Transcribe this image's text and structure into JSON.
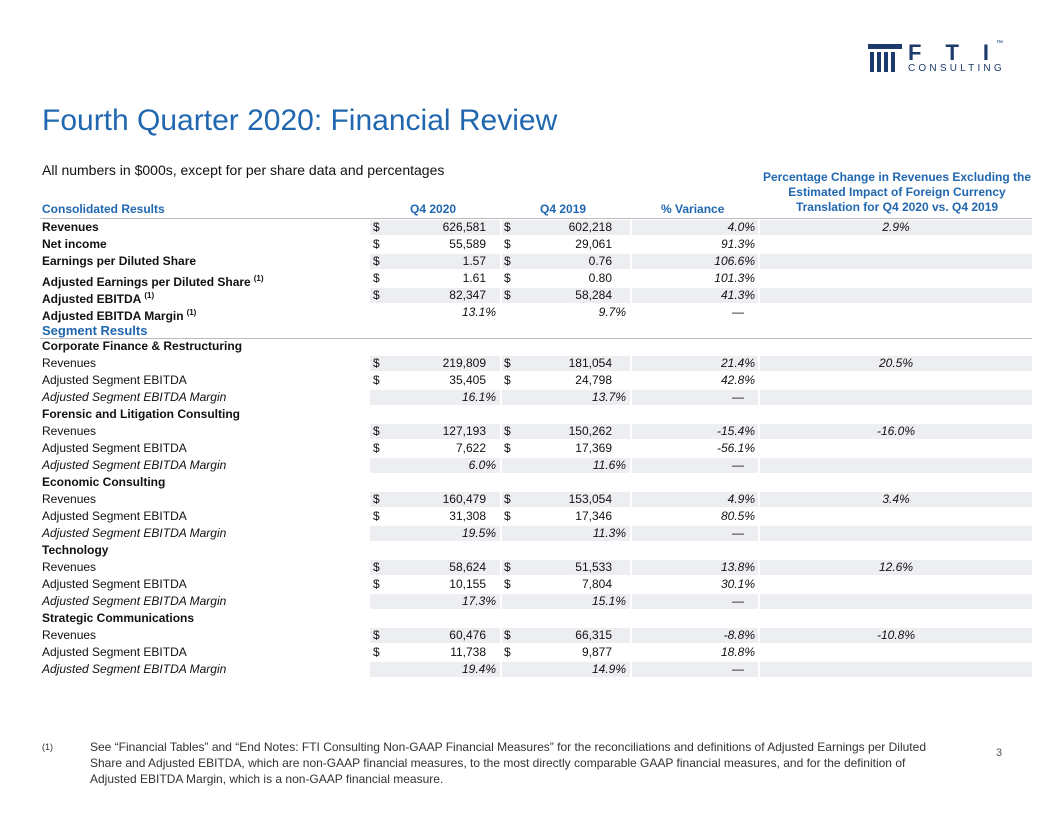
{
  "logo": {
    "mark": "FTI",
    "sub": "CONSULTING",
    "tm": "™"
  },
  "title": "Fourth Quarter 2020: Financial Review",
  "subtitle": "All numbers in $000s, except for per share data and percentages",
  "table": {
    "headers": {
      "label": "Consolidated Results",
      "q4_2020": "Q4 2020",
      "q4_2019": "Q4 2019",
      "variance": "% Variance",
      "fx": "Percentage Change in Revenues Excluding the Estimated Impact of Foreign Currency Translation for Q4 2020 vs. Q4 2019"
    },
    "rows": [
      {
        "label": "Revenues",
        "style": "bold",
        "cur_2020": "$",
        "q4_2020": "626,581",
        "cur_2019": "$",
        "q4_2019": "602,218",
        "variance": "4.0%",
        "fx": "2.9%"
      },
      {
        "label": "Net income",
        "style": "bold",
        "cur_2020": "$",
        "q4_2020": "55,589",
        "cur_2019": "$",
        "q4_2019": "29,061",
        "variance": "91.3%"
      },
      {
        "label": "Earnings per Diluted Share",
        "style": "bold",
        "cur_2020": "$",
        "q4_2020": "1.57",
        "cur_2019": "$",
        "q4_2019": "0.76",
        "variance": "106.6%"
      },
      {
        "label": "Adjusted Earnings per Diluted Share",
        "note": "(1)",
        "style": "bold",
        "cur_2020": "$",
        "q4_2020": "1.61",
        "cur_2019": "$",
        "q4_2019": "0.80",
        "variance": "101.3%"
      },
      {
        "label": "Adjusted EBITDA",
        "note": "(1)",
        "style": "bold",
        "cur_2020": "$",
        "q4_2020": "82,347",
        "cur_2019": "$",
        "q4_2019": "58,284",
        "variance": "41.3%"
      },
      {
        "label": "Adjusted EBITDA Margin",
        "note": "(1)",
        "style": "bold",
        "q4_2020": "13.1%",
        "q4_2019": "9.7%",
        "variance": "—"
      },
      {
        "label": "Segment Results",
        "style": "heading"
      },
      {
        "label": "Corporate Finance & Restructuring",
        "style": "group"
      },
      {
        "label": "Revenues",
        "style": "normal",
        "cur_2020": "$",
        "q4_2020": "219,809",
        "cur_2019": "$",
        "q4_2019": "181,054",
        "variance": "21.4%",
        "fx": "20.5%"
      },
      {
        "label": "Adjusted Segment EBITDA",
        "style": "normal",
        "cur_2020": "$",
        "q4_2020": "35,405",
        "cur_2019": "$",
        "q4_2019": "24,798",
        "variance": "42.8%"
      },
      {
        "label": "Adjusted Segment EBITDA Margin",
        "style": "italic",
        "q4_2020": "16.1%",
        "q4_2019": "13.7%",
        "variance": "—"
      },
      {
        "label": "Forensic and Litigation Consulting",
        "style": "group"
      },
      {
        "label": "Revenues",
        "style": "normal",
        "cur_2020": "$",
        "q4_2020": "127,193",
        "cur_2019": "$",
        "q4_2019": "150,262",
        "variance": "-15.4%",
        "fx": "-16.0%"
      },
      {
        "label": "Adjusted Segment EBITDA",
        "style": "normal",
        "cur_2020": "$",
        "q4_2020": "7,622",
        "cur_2019": "$",
        "q4_2019": "17,369",
        "variance": "-56.1%"
      },
      {
        "label": "Adjusted Segment EBITDA Margin",
        "style": "italic",
        "q4_2020": "6.0%",
        "q4_2019": "11.6%",
        "variance": "—"
      },
      {
        "label": "Economic Consulting",
        "style": "group"
      },
      {
        "label": "Revenues",
        "style": "normal",
        "cur_2020": "$",
        "q4_2020": "160,479",
        "cur_2019": "$",
        "q4_2019": "153,054",
        "variance": "4.9%",
        "fx": "3.4%"
      },
      {
        "label": "Adjusted Segment EBITDA",
        "style": "normal",
        "cur_2020": "$",
        "q4_2020": "31,308",
        "cur_2019": "$",
        "q4_2019": "17,346",
        "variance": "80.5%"
      },
      {
        "label": "Adjusted Segment EBITDA Margin",
        "style": "italic",
        "q4_2020": "19.5%",
        "q4_2019": "11.3%",
        "variance": "—"
      },
      {
        "label": "Technology",
        "style": "group"
      },
      {
        "label": "Revenues",
        "style": "normal",
        "cur_2020": "$",
        "q4_2020": "58,624",
        "cur_2019": "$",
        "q4_2019": "51,533",
        "variance": "13.8%",
        "fx": "12.6%"
      },
      {
        "label": "Adjusted Segment EBITDA",
        "style": "normal",
        "cur_2020": "$",
        "q4_2020": "10,155",
        "cur_2019": "$",
        "q4_2019": "7,804",
        "variance": "30.1%"
      },
      {
        "label": "Adjusted Segment EBITDA Margin",
        "style": "italic",
        "q4_2020": "17.3%",
        "q4_2019": "15.1%",
        "variance": "—"
      },
      {
        "label": "Strategic Communications",
        "style": "group"
      },
      {
        "label": "Revenues",
        "style": "normal",
        "cur_2020": "$",
        "q4_2020": "60,476",
        "cur_2019": "$",
        "q4_2019": "66,315",
        "variance": "-8.8%",
        "fx": "-10.8%"
      },
      {
        "label": "Adjusted Segment EBITDA",
        "style": "normal",
        "cur_2020": "$",
        "q4_2020": "11,738",
        "cur_2019": "$",
        "q4_2019": "9,877",
        "variance": "18.8%"
      },
      {
        "label": "Adjusted Segment EBITDA Margin",
        "style": "italic",
        "q4_2020": "19.4%",
        "q4_2019": "14.9%",
        "variance": "—"
      }
    ]
  },
  "footnote": {
    "marker": "(1)",
    "text": "See “Financial Tables” and “End Notes: FTI Consulting Non-GAAP Financial Measures” for the reconciliations and definitions of Adjusted Earnings per Diluted Share and Adjusted EBITDA, which are non-GAAP financial measures, to the most directly comparable GAAP financial measures, and for the definition of Adjusted EBITDA Margin, which is a non-GAAP financial measure."
  },
  "page_number": "3"
}
